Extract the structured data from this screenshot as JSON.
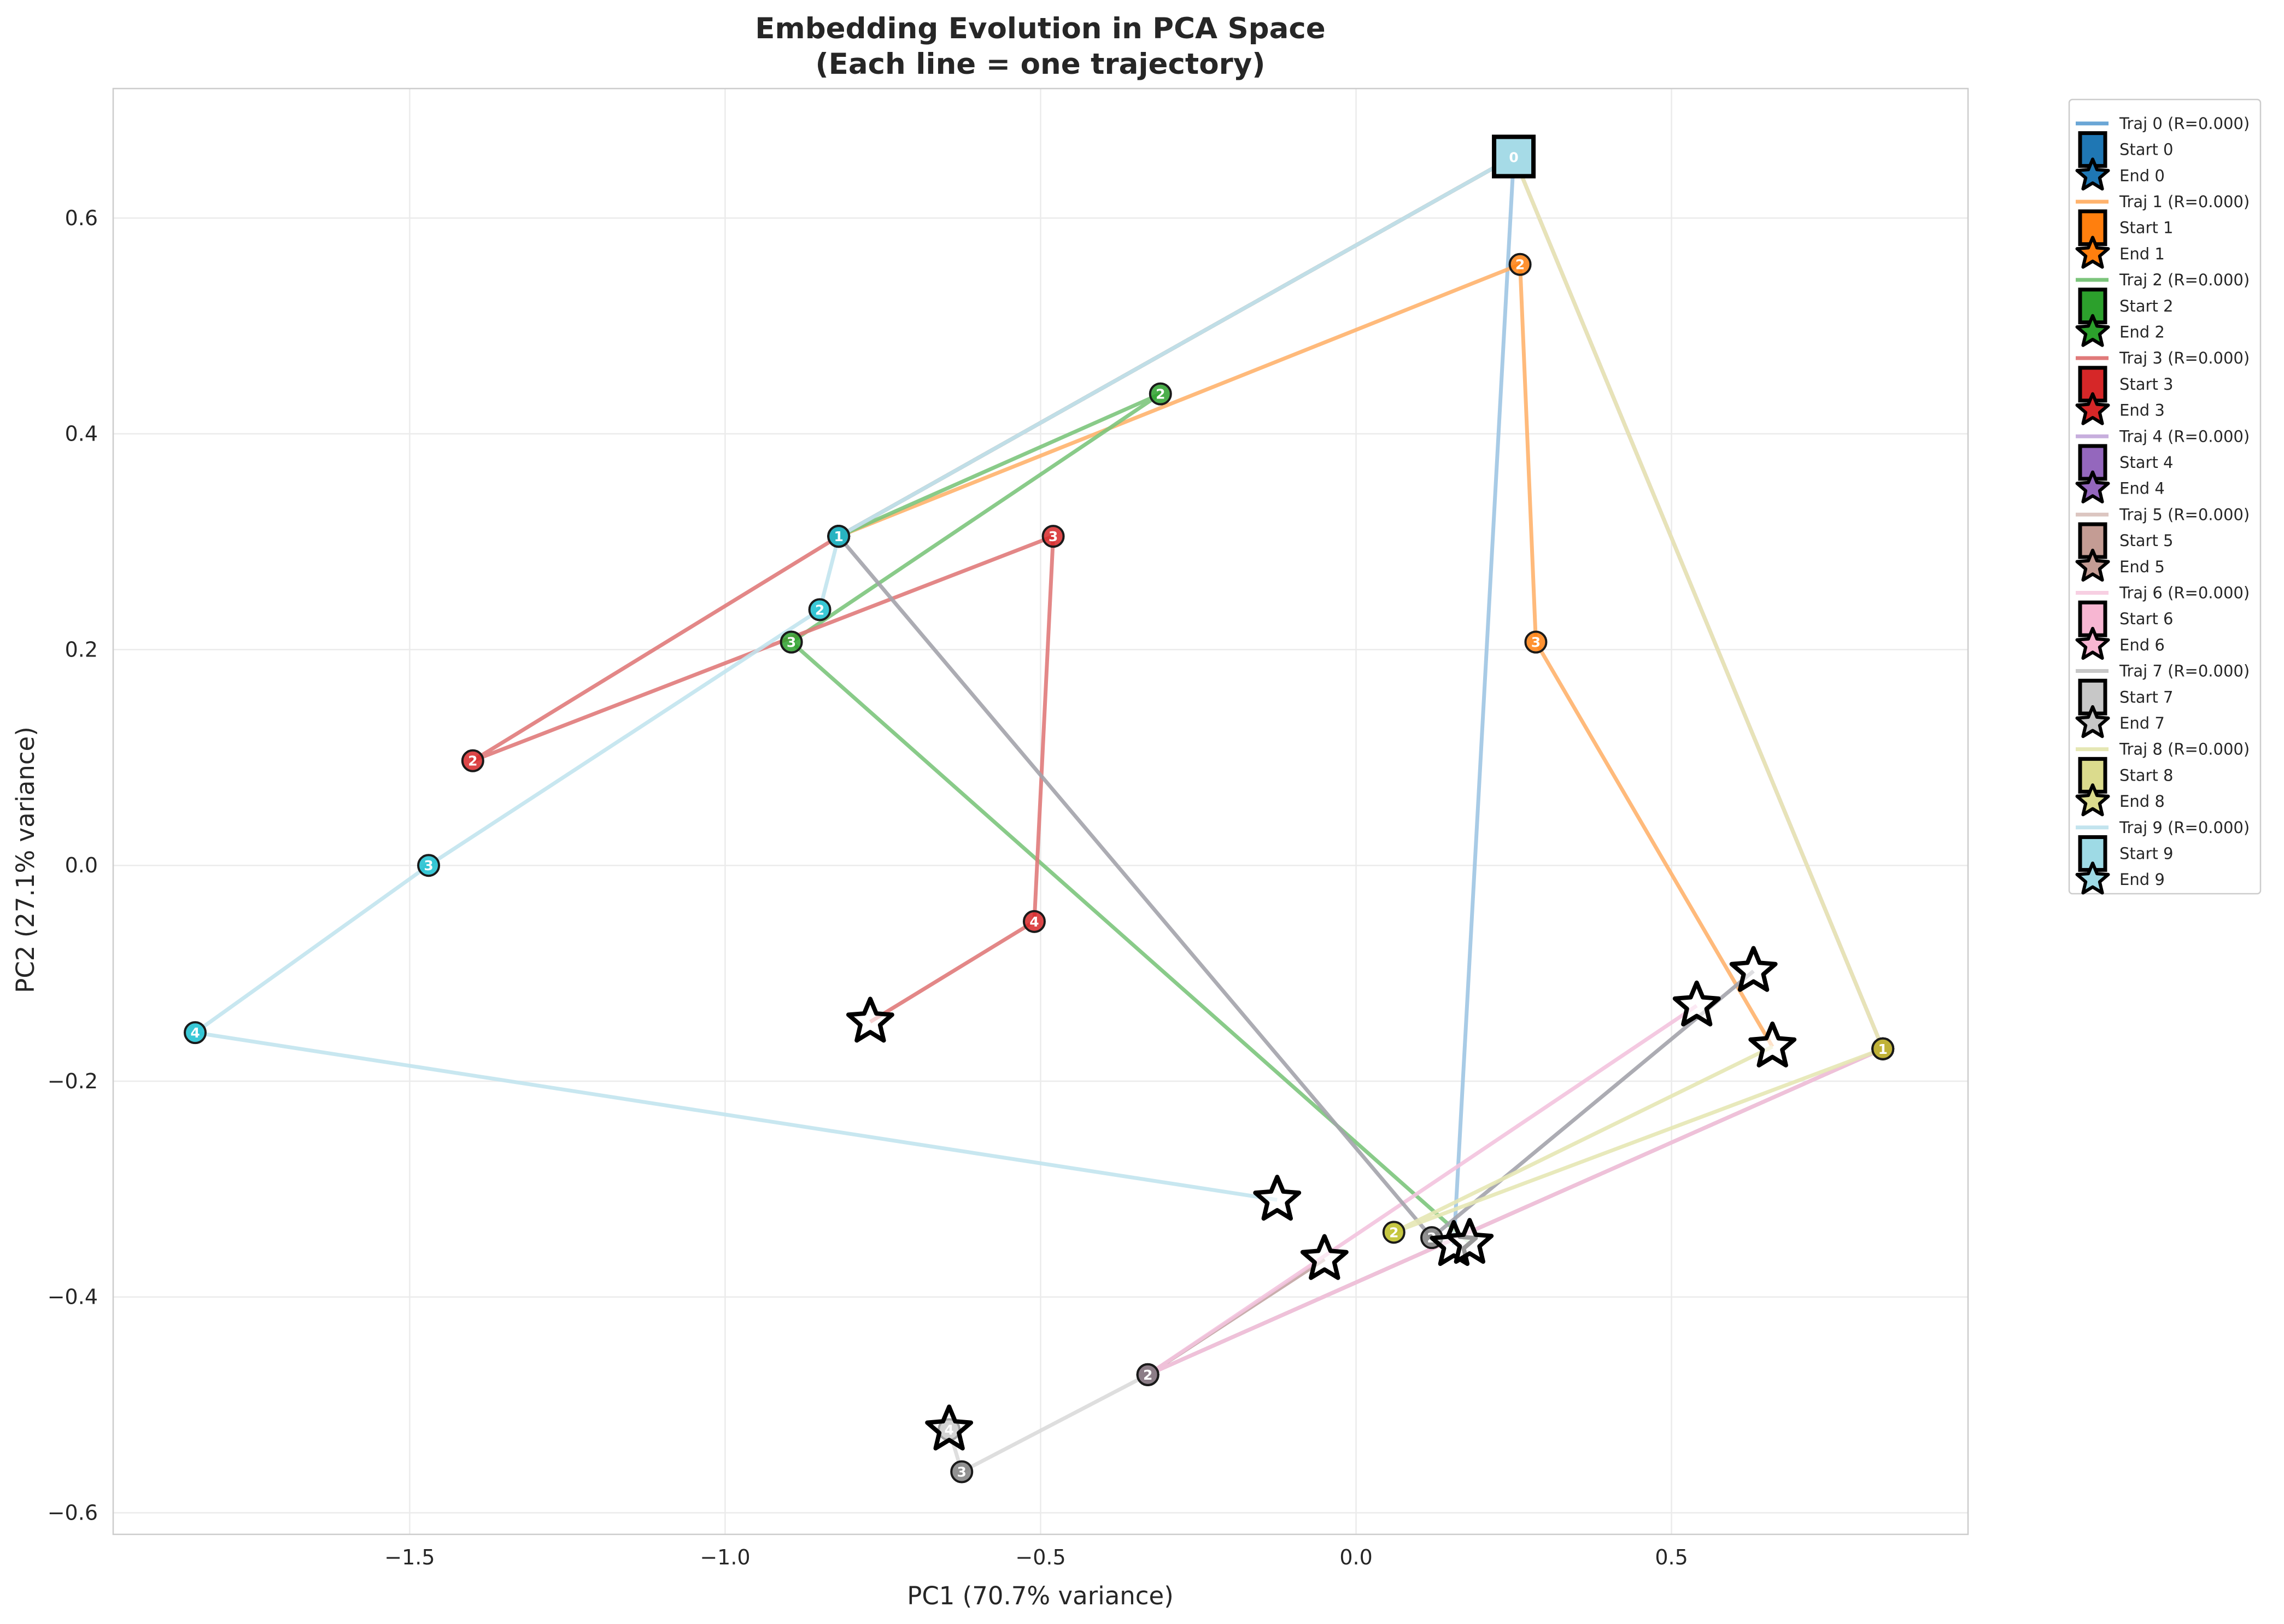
{
  "chart_data": {
    "type": "line",
    "title": [
      "Embedding Evolution in PCA Space",
      "(Each line = one trajectory)"
    ],
    "xlabel": "PC1 (70.7% variance)",
    "ylabel": "PC2 (27.1% variance)",
    "xlim": [
      -1.97,
      0.97
    ],
    "ylim": [
      -0.62,
      0.72
    ],
    "xticks": [
      -1.5,
      -1.0,
      -0.5,
      0.0,
      0.5
    ],
    "xtick_labels": [
      "−1.5",
      "−1.0",
      "−0.5",
      "0.0",
      "0.5"
    ],
    "yticks": [
      -0.6,
      -0.4,
      -0.2,
      0.0,
      0.2,
      0.4,
      0.6
    ],
    "ytick_labels": [
      "−0.6",
      "−0.4",
      "−0.2",
      "0.0",
      "0.2",
      "0.4",
      "0.6"
    ],
    "grid": true,
    "legend_position": "outside-right",
    "series": [
      {
        "name": "Traj 0 (R=0.000)",
        "start_label": "Start 0",
        "end_label": "End 0",
        "color": "#1f77b4",
        "line_color": "#9ec5e3",
        "points": [
          [
            0.25,
            0.657
          ],
          [
            0.155,
            -0.352
          ]
        ],
        "step_labels": [
          "0",
          "4"
        ]
      },
      {
        "name": "Traj 1 (R=0.000)",
        "start_label": "Start 1",
        "end_label": "End 1",
        "color": "#ff7f0e",
        "line_color": "#ffb36d",
        "points": [
          [
            0.25,
            0.657
          ],
          [
            -0.82,
            0.305
          ],
          [
            0.26,
            0.557
          ],
          [
            0.285,
            0.207
          ],
          [
            0.66,
            -0.168
          ]
        ],
        "step_labels": [
          "0",
          "1",
          "2",
          "3",
          "4"
        ]
      },
      {
        "name": "Traj 2 (R=0.000)",
        "start_label": "Start 2",
        "end_label": "End 2",
        "color": "#2ca02c",
        "line_color": "#7cc57c",
        "points": [
          [
            0.25,
            0.657
          ],
          [
            -0.82,
            0.305
          ],
          [
            -0.31,
            0.437
          ],
          [
            -0.895,
            0.207
          ],
          [
            0.18,
            -0.35
          ]
        ],
        "step_labels": [
          "0",
          "1",
          "2",
          "3",
          "4"
        ]
      },
      {
        "name": "Traj 3 (R=0.000)",
        "start_label": "Start 3",
        "end_label": "End 3",
        "color": "#d62728",
        "line_color": "#e07a7a",
        "points": [
          [
            0.25,
            0.657
          ],
          [
            -0.82,
            0.305
          ],
          [
            -1.4,
            0.097
          ],
          [
            -0.48,
            0.305
          ],
          [
            -0.51,
            -0.052
          ],
          [
            -0.77,
            -0.145
          ]
        ],
        "step_labels": [
          "0",
          "1",
          "2",
          "3",
          "4",
          "5"
        ]
      },
      {
        "name": "Traj 4 (R=0.000)",
        "start_label": "Start 4",
        "end_label": "End 4",
        "color": "#9467bd",
        "line_color": "#c7aedd",
        "points": [
          [
            0.25,
            0.657
          ],
          [
            0.835,
            -0.17
          ],
          [
            -0.33,
            -0.472
          ],
          [
            -0.05,
            -0.365
          ]
        ],
        "step_labels": [
          "0",
          "1",
          "2",
          "3"
        ]
      },
      {
        "name": "Traj 5 (R=0.000)",
        "start_label": "Start 5",
        "end_label": "End 5",
        "color": "#8c564b",
        "line_color": "#c9ada6",
        "points": [
          [
            0.25,
            0.657
          ],
          [
            0.835,
            -0.17
          ],
          [
            -0.33,
            -0.472
          ],
          [
            -0.05,
            -0.365
          ]
        ],
        "step_labels": [
          "0",
          "1",
          "2",
          "3"
        ]
      },
      {
        "name": "Traj 6 (R=0.000)",
        "start_label": "Start 6",
        "end_label": "End 6",
        "color": "#e377c2",
        "line_color": "#f3c3de",
        "points": [
          [
            0.25,
            0.657
          ],
          [
            0.835,
            -0.17
          ],
          [
            -0.33,
            -0.472
          ],
          [
            0.54,
            -0.13
          ]
        ],
        "step_labels": [
          "0",
          "1",
          "2",
          "3"
        ]
      },
      {
        "name": "Traj 7 (R=0.000)",
        "start_label": "Start 7",
        "end_label": "End 7",
        "color": "#7f7f7f",
        "line_color": "#a3a3ab",
        "points": [
          [
            0.25,
            0.657
          ],
          [
            -0.82,
            0.305
          ],
          [
            0.12,
            -0.345
          ],
          [
            0.63,
            -0.098
          ]
        ],
        "step_labels": [
          "0",
          "1",
          "2",
          "3"
        ]
      },
      {
        "name": "Traj 8 (R=0.000)",
        "start_label": "Start 8",
        "end_label": "End 8",
        "color": "#bcbd22",
        "line_color": "#e5e7b4",
        "points": [
          [
            0.25,
            0.657
          ],
          [
            0.835,
            -0.17
          ],
          [
            0.06,
            -0.34
          ],
          [
            0.66,
            -0.168
          ]
        ],
        "step_labels": [
          "0",
          "1",
          "2",
          "3"
        ]
      },
      {
        "name": "Traj 9 (R=0.000)",
        "start_label": "Start 9",
        "end_label": "End 9",
        "color": "#17becf",
        "line_color": "#c2e4ee",
        "points": [
          [
            0.25,
            0.657
          ],
          [
            -0.82,
            0.305
          ],
          [
            -0.85,
            0.237
          ],
          [
            -1.47,
            0.0
          ],
          [
            -1.84,
            -0.155
          ],
          [
            -0.125,
            -0.31
          ]
        ],
        "step_labels": [
          "0",
          "1",
          "2",
          "3",
          "4",
          "5"
        ]
      },
      {
        "name": "",
        "color": "#7f7f7f",
        "line_color": "#dadada",
        "points": [
          [
            -0.33,
            -0.472
          ],
          [
            -0.625,
            -0.562
          ],
          [
            -0.645,
            -0.523
          ]
        ],
        "step_labels": [
          "2",
          "3",
          "4"
        ]
      }
    ],
    "start_marker_fill": "#a6dbe7",
    "end_marker_points": [
      [
        0.155,
        -0.352
      ],
      [
        0.66,
        -0.168
      ],
      [
        0.18,
        -0.35
      ],
      [
        -0.77,
        -0.145
      ],
      [
        -0.05,
        -0.365
      ],
      [
        0.54,
        -0.13
      ],
      [
        0.63,
        -0.098
      ],
      [
        -0.125,
        -0.31
      ],
      [
        -0.645,
        -0.523
      ]
    ]
  },
  "legend": {
    "entries": [
      {
        "traj": "Traj 0 (R=0.000)",
        "start": "Start 0",
        "end": "End 0",
        "color": "#1f77b4",
        "line_color": "#6aa6d6"
      },
      {
        "traj": "Traj 1 (R=0.000)",
        "start": "Start 1",
        "end": "End 1",
        "color": "#ff7f0e",
        "line_color": "#ffb36d"
      },
      {
        "traj": "Traj 2 (R=0.000)",
        "start": "Start 2",
        "end": "End 2",
        "color": "#2ca02c",
        "line_color": "#7cc57c"
      },
      {
        "traj": "Traj 3 (R=0.000)",
        "start": "Start 3",
        "end": "End 3",
        "color": "#d62728",
        "line_color": "#e07a7a"
      },
      {
        "traj": "Traj 4 (R=0.000)",
        "start": "Start 4",
        "end": "End 4",
        "color": "#9467bd",
        "line_color": "#c7aedd"
      },
      {
        "traj": "Traj 5 (R=0.000)",
        "start": "Start 5",
        "end": "End 5",
        "color": "#c49c94",
        "line_color": "#dcc6c1"
      },
      {
        "traj": "Traj 6 (R=0.000)",
        "start": "Start 6",
        "end": "End 6",
        "color": "#f7b6d2",
        "line_color": "#f7cfe2"
      },
      {
        "traj": "Traj 7 (R=0.000)",
        "start": "Start 7",
        "end": "End 7",
        "color": "#c7c7c7",
        "line_color": "#c7c7c7"
      },
      {
        "traj": "Traj 8 (R=0.000)",
        "start": "Start 8",
        "end": "End 8",
        "color": "#dbdb8d",
        "line_color": "#e5e7b4"
      },
      {
        "traj": "Traj 9 (R=0.000)",
        "start": "Start 9",
        "end": "End 9",
        "color": "#9edae5",
        "line_color": "#c2e4ee"
      }
    ]
  }
}
